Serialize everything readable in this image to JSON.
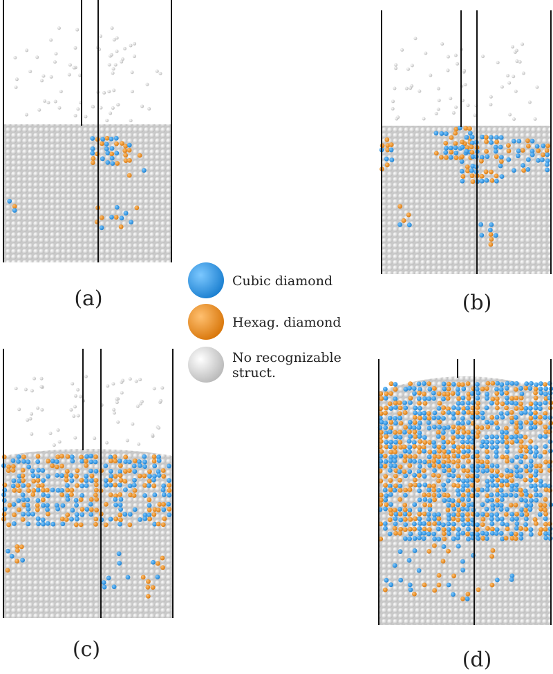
{
  "panels": [
    {
      "label": "(a)"
    },
    {
      "label": "(b)"
    },
    {
      "label": "(c)"
    },
    {
      "label": "(d)"
    }
  ],
  "legend": [
    {
      "label": "Cubic diamond"
    },
    {
      "label": "Hexag. diamond"
    },
    {
      "label": "No recognizable",
      "label2": "struct."
    }
  ]
}
